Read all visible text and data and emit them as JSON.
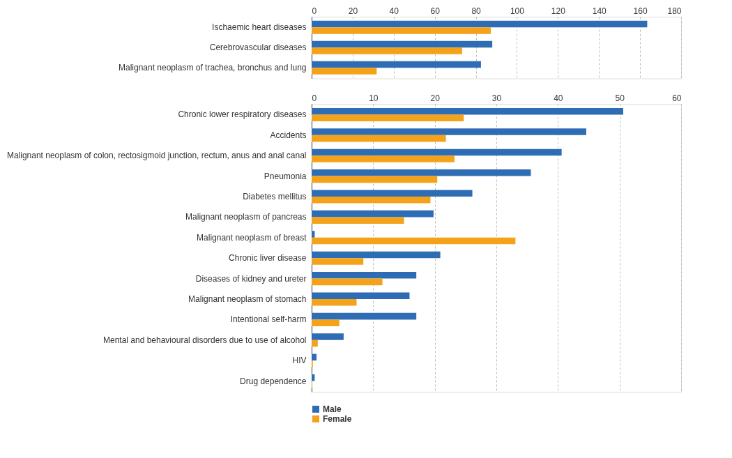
{
  "chart_data": [
    {
      "type": "bar",
      "orientation": "horizontal",
      "categories": [
        "Ischaemic heart diseases",
        "Cerebrovascular diseases",
        "Malignant neoplasm of trachea, bronchus and lung"
      ],
      "series": [
        {
          "name": "Male",
          "color": "#2e6db4",
          "values": [
            163.5,
            88,
            82.5
          ]
        },
        {
          "name": "Female",
          "color": "#f5a21b",
          "values": [
            87.3,
            73.3,
            31.7
          ]
        }
      ],
      "xlim": [
        0,
        180
      ],
      "xticks": [
        0,
        20,
        40,
        60,
        80,
        100,
        120,
        140,
        160,
        180
      ],
      "grid": "x",
      "legend": "bottom"
    },
    {
      "type": "bar",
      "orientation": "horizontal",
      "categories": [
        "Chronic lower respiratory diseases",
        "Accidents",
        "Malignant neoplasm of colon, rectosigmoid junction, rectum, anus and anal canal",
        "Pneumonia",
        "Diabetes mellitus",
        "Malignant neoplasm of pancreas",
        "Malignant neoplasm of breast",
        "Chronic liver disease",
        "Diseases of kidney and ureter",
        "Malignant neoplasm of stomach",
        "Intentional self-harm",
        "Mental and behavioural disorders due to use of alcohol",
        "HIV",
        "Drug dependence"
      ],
      "series": [
        {
          "name": "Male",
          "color": "#2e6db4",
          "values": [
            50.6,
            44.6,
            40.6,
            35.6,
            26.1,
            19.8,
            0.5,
            20.9,
            17.0,
            15.9,
            17.0,
            5.2,
            0.8,
            0.5
          ]
        },
        {
          "name": "Female",
          "color": "#f5a21b",
          "values": [
            24.7,
            21.8,
            23.2,
            20.4,
            19.3,
            15.0,
            33.1,
            8.4,
            11.5,
            7.3,
            4.5,
            1.0,
            0.2,
            0.1
          ]
        }
      ],
      "xlim": [
        0,
        60
      ],
      "xticks": [
        0,
        10,
        20,
        30,
        40,
        50,
        60
      ],
      "grid": "x",
      "legend": "bottom"
    }
  ]
}
